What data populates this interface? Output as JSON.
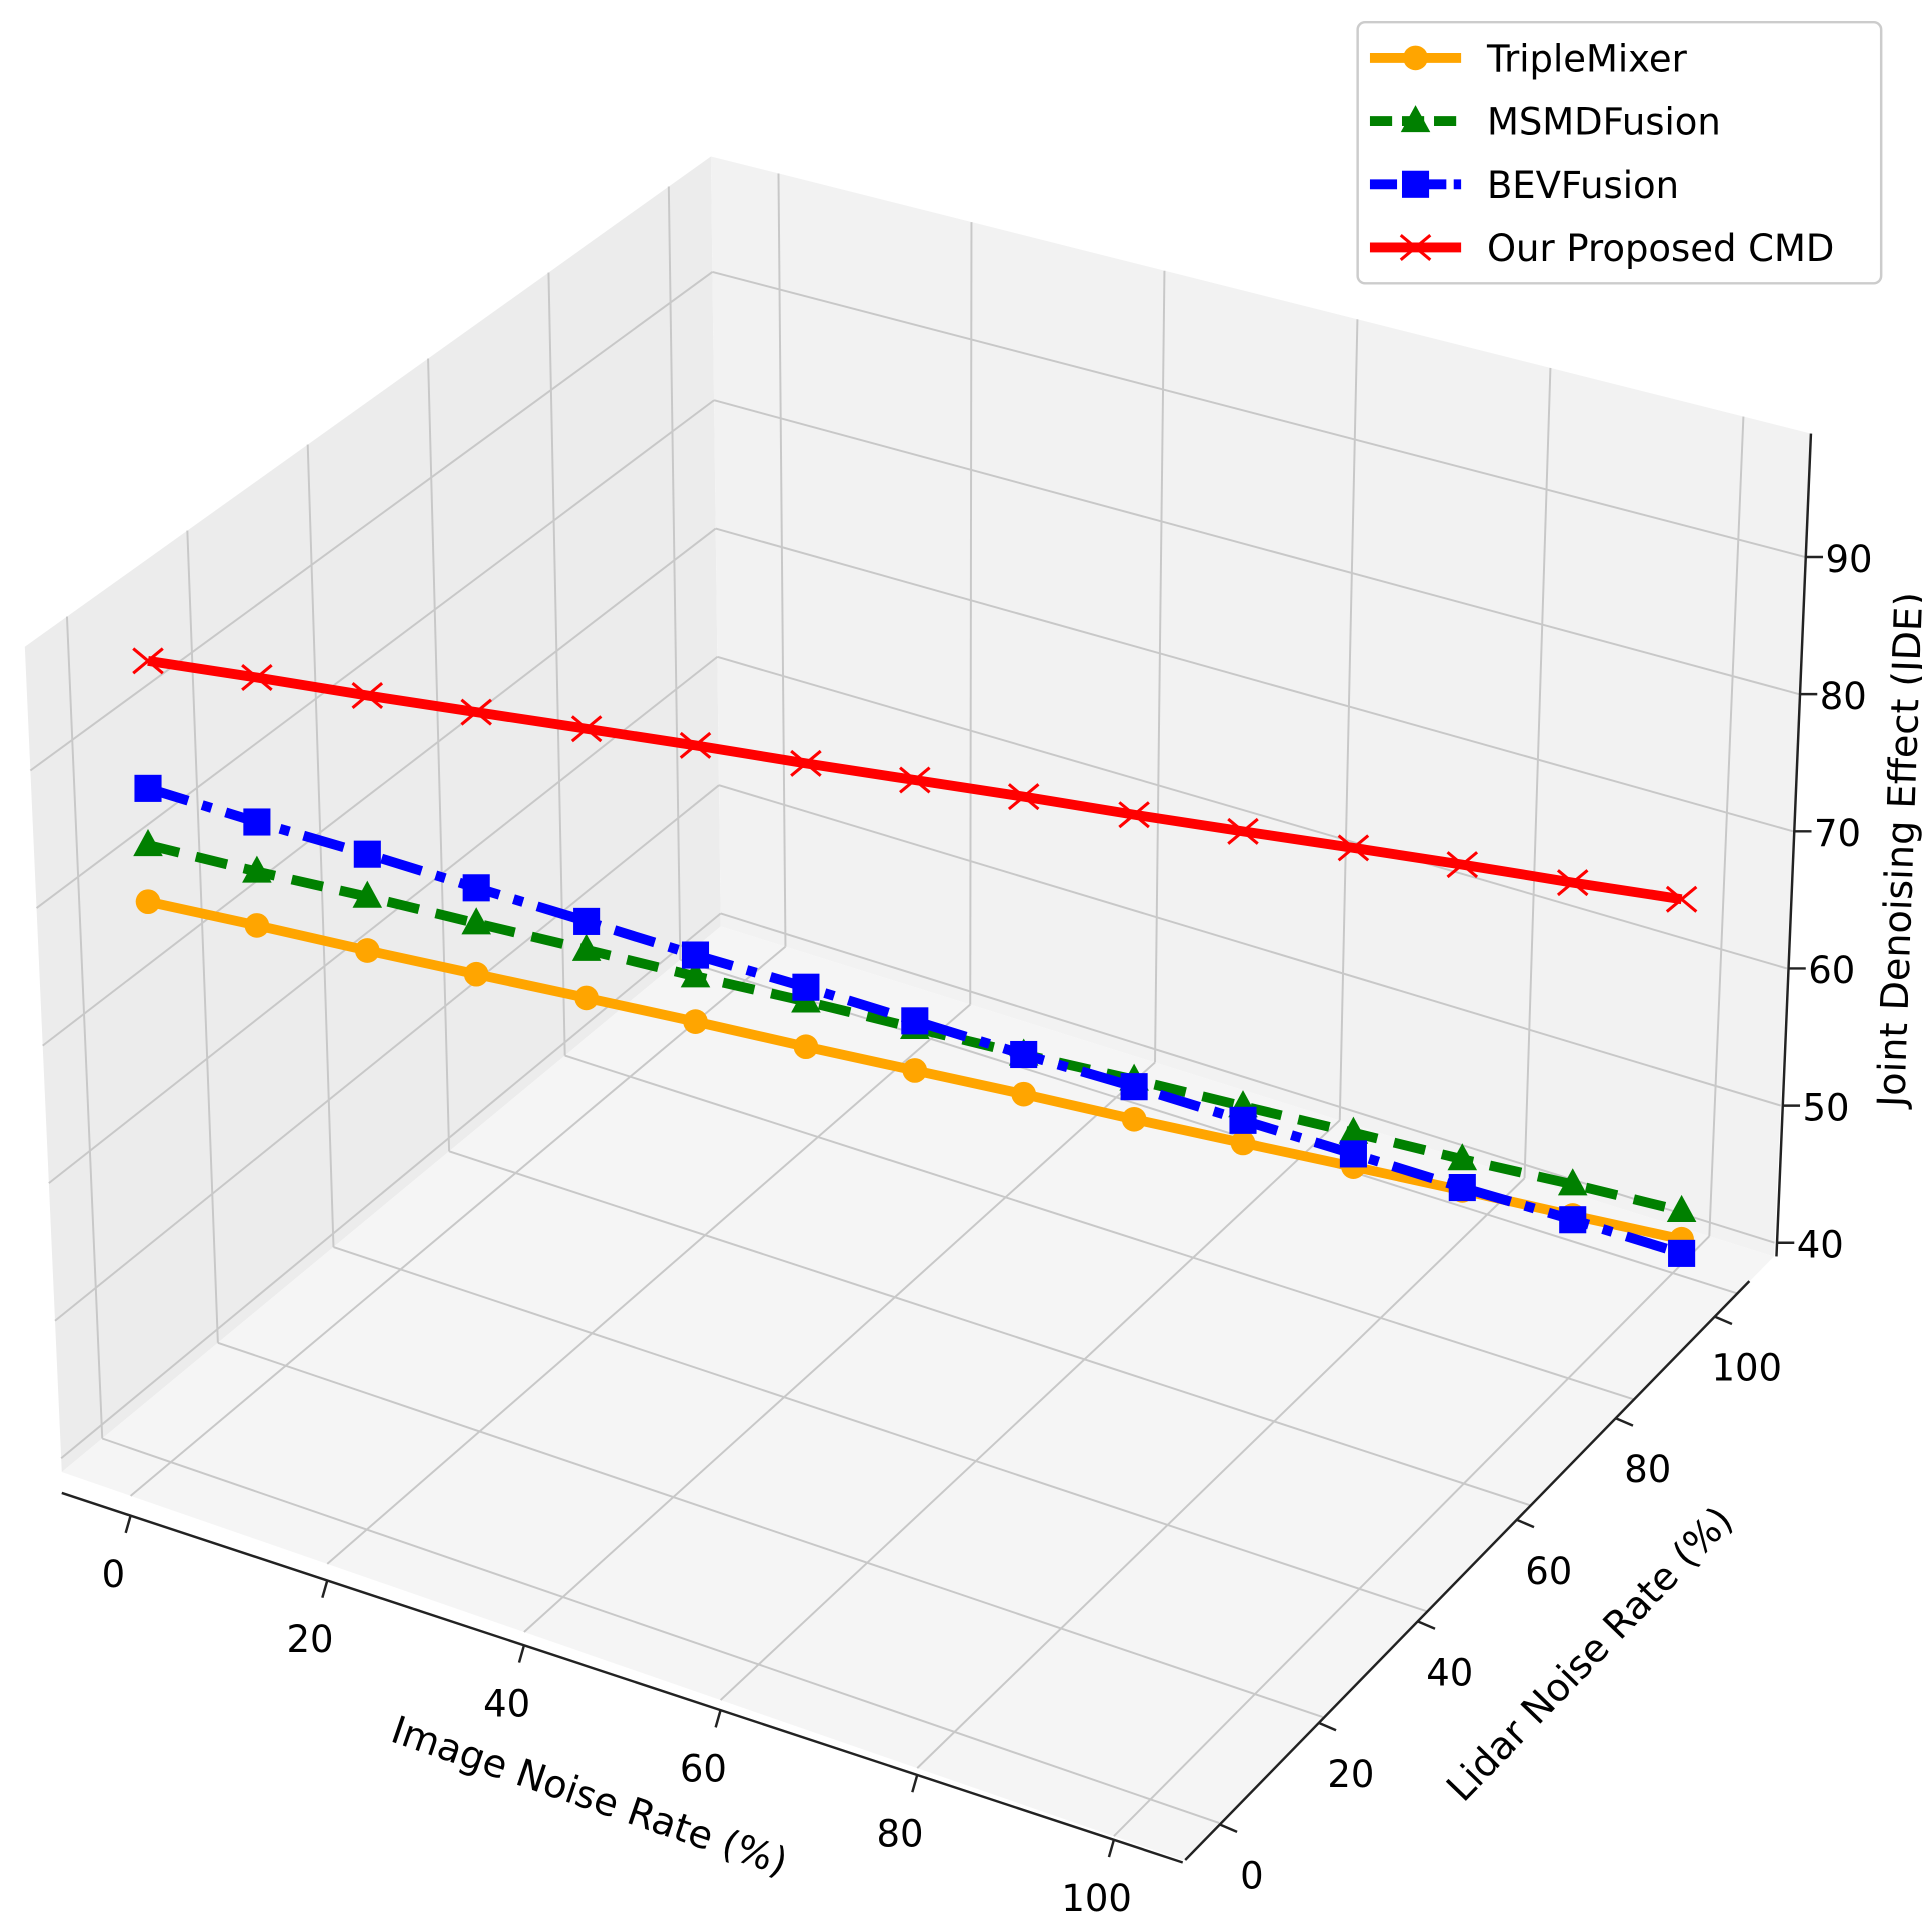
{
  "chart_data": {
    "type": "line",
    "projection": "3d",
    "title": "",
    "xlabel": "Image Noise Rate (%)",
    "ylabel": "Lidar Noise Rate (%)",
    "zlabel": "Joint Denoising Effect (JDE)",
    "xlim": [
      -7,
      107
    ],
    "ylim": [
      -7,
      107
    ],
    "zlim": [
      39,
      99
    ],
    "xticks": [
      "0",
      "20",
      "40",
      "60",
      "80",
      "100"
    ],
    "yticks": [
      "0",
      "20",
      "40",
      "60",
      "80",
      "100"
    ],
    "zticks": [
      "40",
      "50",
      "60",
      "70",
      "80",
      "90"
    ],
    "grid": true,
    "legend_position": "top-right",
    "x": [
      0,
      7.1,
      14.3,
      21.4,
      28.6,
      35.7,
      42.9,
      50,
      57.1,
      64.3,
      71.4,
      78.6,
      85.7,
      92.9,
      100
    ],
    "y": [
      0,
      7.1,
      14.3,
      21.4,
      28.6,
      35.7,
      42.9,
      50,
      57.1,
      64.3,
      71.4,
      78.6,
      85.7,
      92.9,
      100
    ],
    "series": [
      {
        "name": "TripleMixer",
        "color": "#ffa500",
        "marker": "circle",
        "style": "solid",
        "values": [
          68,
          66.1,
          64.1,
          62.2,
          60.3,
          58.4,
          56.4,
          54.5,
          52.6,
          50.6,
          48.7,
          46.8,
          44.9,
          42.9,
          41
        ]
      },
      {
        "name": "MSMDFusion",
        "color": "#008000",
        "marker": "triangle",
        "style": "dashed",
        "values": [
          72,
          69.9,
          67.9,
          65.8,
          63.7,
          61.6,
          59.6,
          57.5,
          55.4,
          53.4,
          51.3,
          49.2,
          47.1,
          45.1,
          43
        ]
      },
      {
        "name": "BEVFusion",
        "color": "#0000ff",
        "marker": "square",
        "style": "dashdot",
        "values": [
          76,
          73.4,
          70.9,
          68.3,
          65.7,
          63.1,
          60.6,
          58,
          55.4,
          52.9,
          50.3,
          47.7,
          45.1,
          42.6,
          40
        ]
      },
      {
        "name": "Our Proposed CMD",
        "color": "#ff0000",
        "marker": "x",
        "style": "solid",
        "values": [
          85,
          83.6,
          82.1,
          80.7,
          79.3,
          77.9,
          76.4,
          75,
          73.6,
          72.1,
          70.7,
          69.3,
          67.9,
          66.4,
          65
        ]
      }
    ]
  }
}
